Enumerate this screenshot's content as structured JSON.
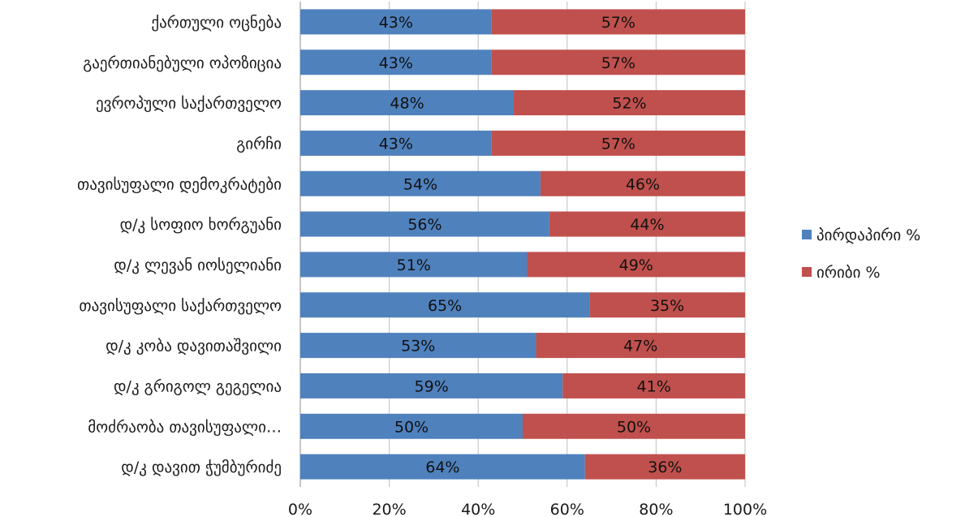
{
  "chart_data": {
    "type": "bar",
    "orientation": "horizontal",
    "stacked": "percent",
    "categories": [
      "ქართული ოცნება",
      "გაერთიანებული ოპოზიცია",
      "ევროპული საქართველო",
      "გირჩი",
      "თავისუფალი დემოკრატები",
      "დ/კ სოფიო ხორგუანი",
      "დ/კ ლევან იოსელიანი",
      "თავისუფალი საქართველო",
      "დ/კ კობა დავითაშვილი",
      "დ/კ გრიგოლ გეგელია",
      "მოძრაობა თავისუფალი…",
      "დ/კ დავით ჭუმბურიძე"
    ],
    "series": [
      {
        "name": "პირდაპირი %",
        "color": "#4F81BD",
        "values": [
          43,
          43,
          48,
          43,
          54,
          56,
          51,
          65,
          53,
          59,
          50,
          64
        ],
        "labels": [
          "43%",
          "43%",
          "48%",
          "43%",
          "54%",
          "56%",
          "51%",
          "65%",
          "53%",
          "59%",
          "50%",
          "64%"
        ]
      },
      {
        "name": "ირიბი %",
        "color": "#C0504D",
        "values": [
          57,
          57,
          52,
          57,
          46,
          44,
          49,
          35,
          47,
          41,
          50,
          36
        ],
        "labels": [
          "57%",
          "57%",
          "52%",
          "57%",
          "46%",
          "44%",
          "49%",
          "35%",
          "47%",
          "41%",
          "50%",
          "36%"
        ]
      }
    ],
    "xticks": [
      "0%",
      "20%",
      "40%",
      "60%",
      "80%",
      "100%"
    ],
    "xlim": [
      0,
      100
    ],
    "grid": true,
    "legend_position": "right",
    "title": "",
    "xlabel": "",
    "ylabel": ""
  }
}
